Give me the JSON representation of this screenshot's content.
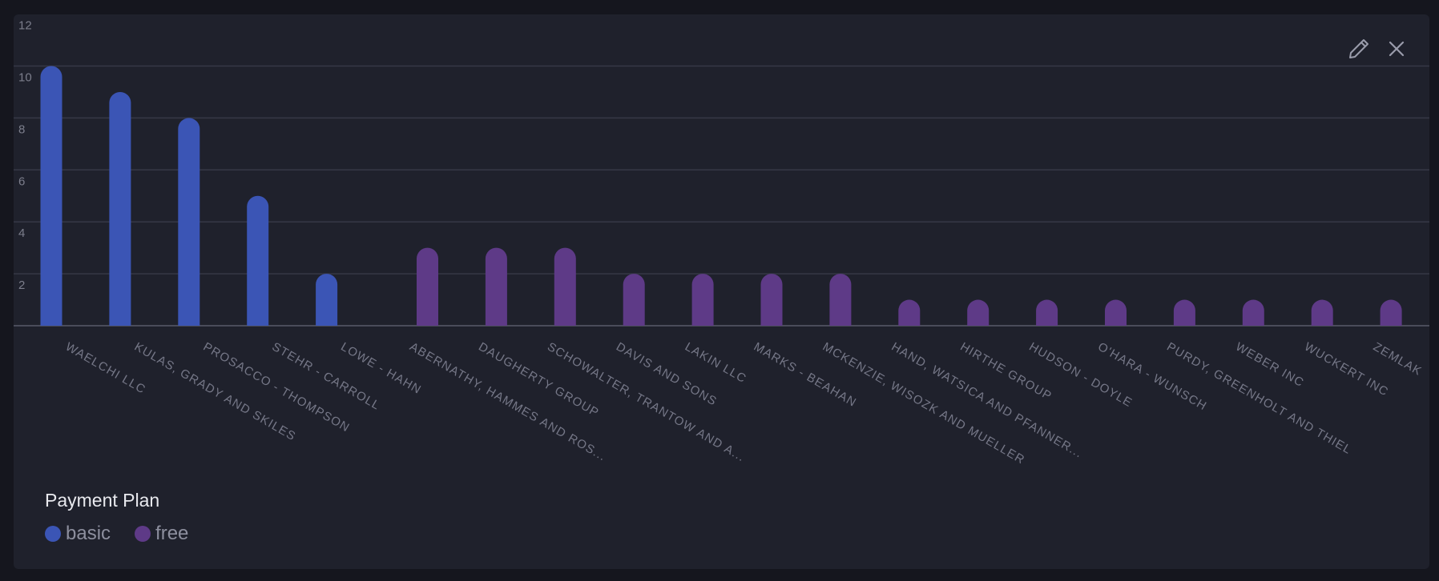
{
  "chart_data": {
    "type": "bar",
    "categories": [
      "WAELCHI LLC",
      "KULAS, GRADY AND SKILES",
      "PROSACCO - THOMPSON",
      "STEHR - CARROLL",
      "LOWE - HAHN",
      "ABERNATHY, HAMMES AND ROS...",
      "DAUGHERTY GROUP",
      "SCHOWALTER, TRANTOW AND A...",
      "DAVIS AND SONS",
      "LAKIN LLC",
      "MARKS - BEAHAN",
      "MCKENZIE, WISOZK AND MUELLER",
      "HAND, WATSICA AND PFANNER...",
      "HIRTHE GROUP",
      "HUDSON - DOYLE",
      "O'HARA - WUNSCH",
      "PURDY, GREENHOLT AND THIEL",
      "WEBER INC",
      "WUCKERT INC",
      "ZEMLAK"
    ],
    "series": [
      {
        "name": "basic",
        "color": "#3b55b5",
        "values": [
          10,
          9,
          8,
          5,
          2,
          null,
          null,
          null,
          null,
          null,
          null,
          null,
          null,
          null,
          null,
          null,
          null,
          null,
          null,
          null
        ]
      },
      {
        "name": "free",
        "color": "#5e3a87",
        "values": [
          null,
          null,
          null,
          null,
          null,
          3,
          3,
          3,
          2,
          2,
          2,
          2,
          1,
          1,
          1,
          1,
          1,
          1,
          1,
          1
        ]
      }
    ],
    "ylim": [
      0,
      12
    ],
    "yticks": [
      2,
      4,
      6,
      8,
      10,
      12
    ],
    "grid": true,
    "legend_title": "Payment Plan",
    "legend_placement": "bottom-left"
  },
  "toolbar": {
    "edit_icon": "pencil-icon",
    "close_icon": "close-icon"
  }
}
